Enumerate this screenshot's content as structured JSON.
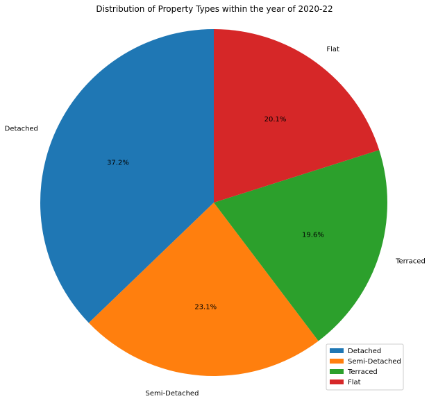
{
  "chart_data": {
    "type": "pie",
    "title": "Distribution of Property Types within the year of 2020-22",
    "categories": [
      "Detached",
      "Semi-Detached",
      "Terraced",
      "Flat"
    ],
    "values": [
      37.2,
      23.1,
      19.6,
      20.1
    ],
    "percent_labels": [
      "37.2%",
      "23.1%",
      "19.6%",
      "20.1%"
    ],
    "colors": [
      "#1f77b4",
      "#ff7f0e",
      "#2ca02c",
      "#d62728"
    ],
    "start_angle_deg": 90,
    "direction": "counterclockwise",
    "legend": {
      "placement": "lower-right",
      "entries": [
        "Detached",
        "Semi-Detached",
        "Terraced",
        "Flat"
      ]
    }
  }
}
